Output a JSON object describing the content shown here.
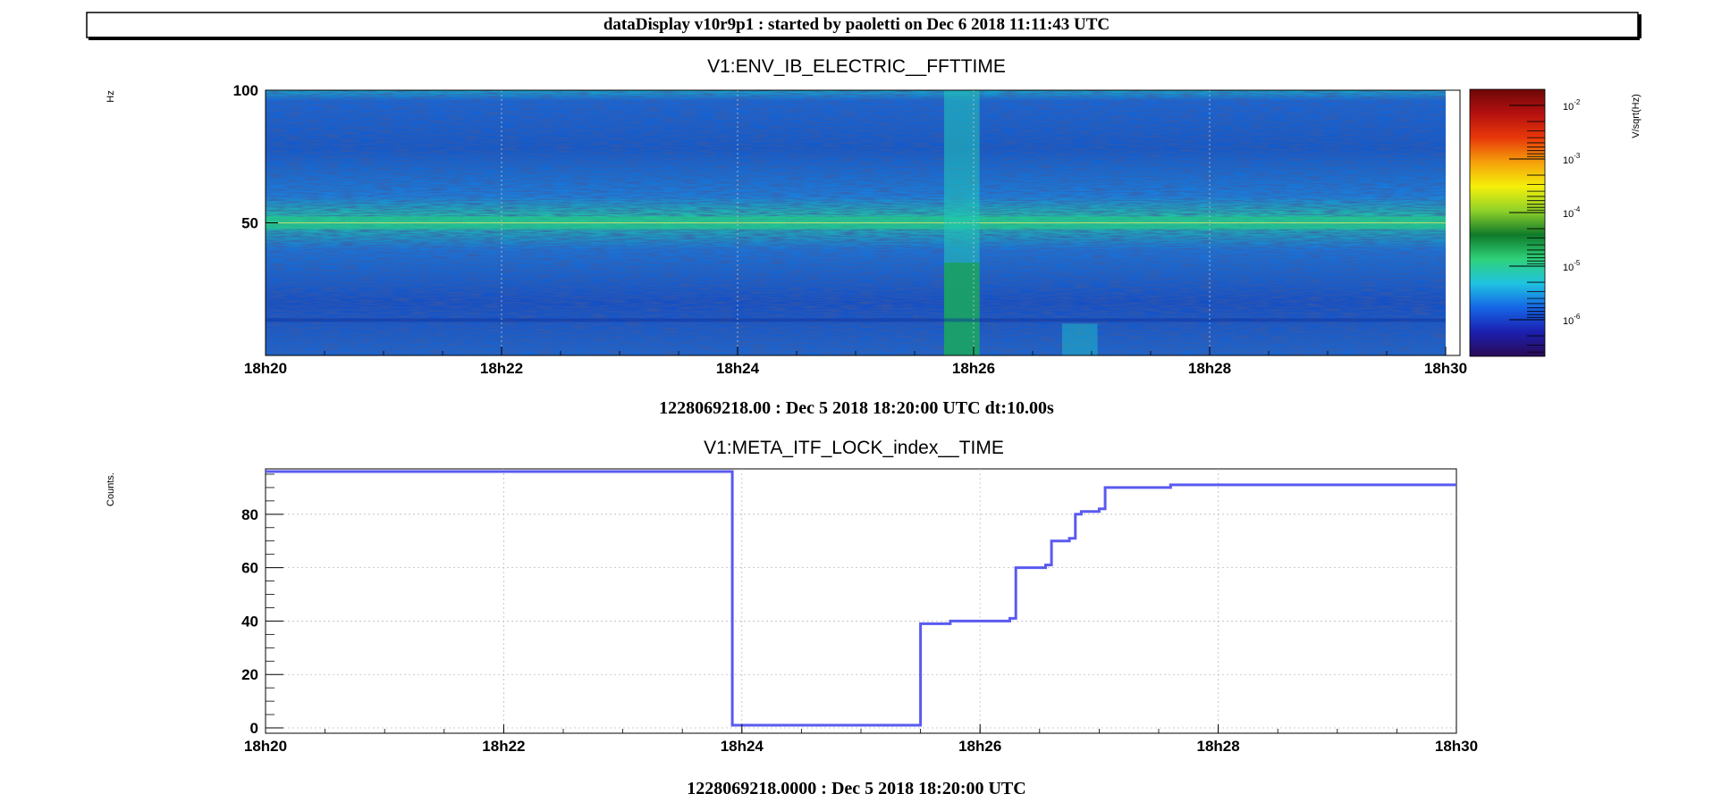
{
  "header": {
    "title": "dataDisplay v10r9p1 : started by paoletti on Dec  6 2018 11:11:43 UTC"
  },
  "chart_data": [
    {
      "type": "heatmap",
      "title": "V1:ENV_IB_ELECTRIC__FFTTIME",
      "ylabel": "Hz",
      "zlabel": "V/sqrt(Hz)",
      "x_ticks": [
        "18h20",
        "18h22",
        "18h24",
        "18h26",
        "18h28",
        "18h30"
      ],
      "y_ticks": [
        {
          "label": "100",
          "value": 100
        },
        {
          "label": "50",
          "value": 50
        }
      ],
      "ylim": [
        0,
        100
      ],
      "xlim_minutes": [
        0,
        10
      ],
      "colorbar": {
        "scale": "log",
        "ticks": [
          {
            "base": "10",
            "exp": "-2"
          },
          {
            "base": "10",
            "exp": "-3"
          },
          {
            "base": "10",
            "exp": "-4"
          },
          {
            "base": "10",
            "exp": "-5"
          },
          {
            "base": "10",
            "exp": "-6"
          }
        ],
        "colors": [
          "#2a0a55",
          "#1b1fb0",
          "#1565e6",
          "#1fc3e0",
          "#2fd27a",
          "#0f7a2a",
          "#8fd12a",
          "#f5f00a",
          "#f5a00a",
          "#e8380a",
          "#b51010",
          "#6e0808"
        ]
      },
      "features": {
        "lines_hz": [
          50
        ],
        "transient_minute": [
          5.75,
          6.05
        ],
        "secondary_transients_minute": [
          6.75,
          7.05
        ]
      },
      "footer": "1228069218.00 : Dec  5 2018 18:20:00 UTC dt:10.00s",
      "grid": true
    },
    {
      "type": "line",
      "title": "V1:META_ITF_LOCK_index__TIME",
      "ylabel": "Counts.",
      "x_ticks": [
        "18h20",
        "18h22",
        "18h24",
        "18h26",
        "18h28",
        "18h30"
      ],
      "y_ticks": [
        {
          "label": "0",
          "value": 0
        },
        {
          "label": "20",
          "value": 20
        },
        {
          "label": "40",
          "value": 40
        },
        {
          "label": "60",
          "value": 60
        },
        {
          "label": "80",
          "value": 80
        }
      ],
      "ylim": [
        -2,
        97
      ],
      "xlim_minutes": [
        0,
        10
      ],
      "series": [
        {
          "color": "#5a5af0",
          "points": [
            [
              0,
              96
            ],
            [
              3.92,
              96
            ],
            [
              3.92,
              1
            ],
            [
              5.5,
              1
            ],
            [
              5.5,
              39
            ],
            [
              5.75,
              39
            ],
            [
              5.75,
              40
            ],
            [
              6.25,
              40
            ],
            [
              6.25,
              41
            ],
            [
              6.3,
              41
            ],
            [
              6.3,
              60
            ],
            [
              6.55,
              60
            ],
            [
              6.55,
              61
            ],
            [
              6.6,
              61
            ],
            [
              6.6,
              70
            ],
            [
              6.75,
              70
            ],
            [
              6.75,
              71
            ],
            [
              6.8,
              71
            ],
            [
              6.8,
              80
            ],
            [
              6.85,
              80
            ],
            [
              6.85,
              81
            ],
            [
              7.0,
              81
            ],
            [
              7.0,
              82
            ],
            [
              7.05,
              82
            ],
            [
              7.05,
              90
            ],
            [
              7.6,
              90
            ],
            [
              7.6,
              91
            ],
            [
              10,
              91
            ]
          ]
        }
      ],
      "footer": "1228069218.0000 : Dec  5 2018 18:20:00 UTC",
      "grid": true
    }
  ]
}
